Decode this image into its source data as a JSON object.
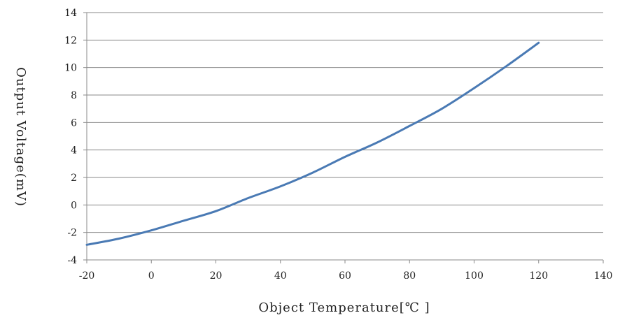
{
  "chart_data": {
    "type": "line",
    "title": "",
    "xlabel": "Object Temperature[℃ ]",
    "ylabel": "Output Voltage(mV)",
    "xlim": [
      -20,
      140
    ],
    "ylim": [
      -4,
      14
    ],
    "xticks": [
      -20,
      0,
      20,
      40,
      60,
      80,
      100,
      120,
      140
    ],
    "yticks": [
      -4,
      -2,
      0,
      2,
      4,
      6,
      8,
      10,
      12,
      14
    ],
    "grid": "horizontal",
    "legend": "none",
    "series": [
      {
        "color": "#4a7ab4",
        "x": [
          -20,
          -10,
          0,
          10,
          20,
          30,
          40,
          50,
          60,
          70,
          80,
          90,
          100,
          110,
          120
        ],
        "y": [
          -2.9,
          -2.45,
          -1.85,
          -1.15,
          -0.45,
          0.5,
          1.35,
          2.35,
          3.5,
          4.55,
          5.75,
          7.0,
          8.5,
          10.1,
          11.8
        ]
      }
    ]
  }
}
